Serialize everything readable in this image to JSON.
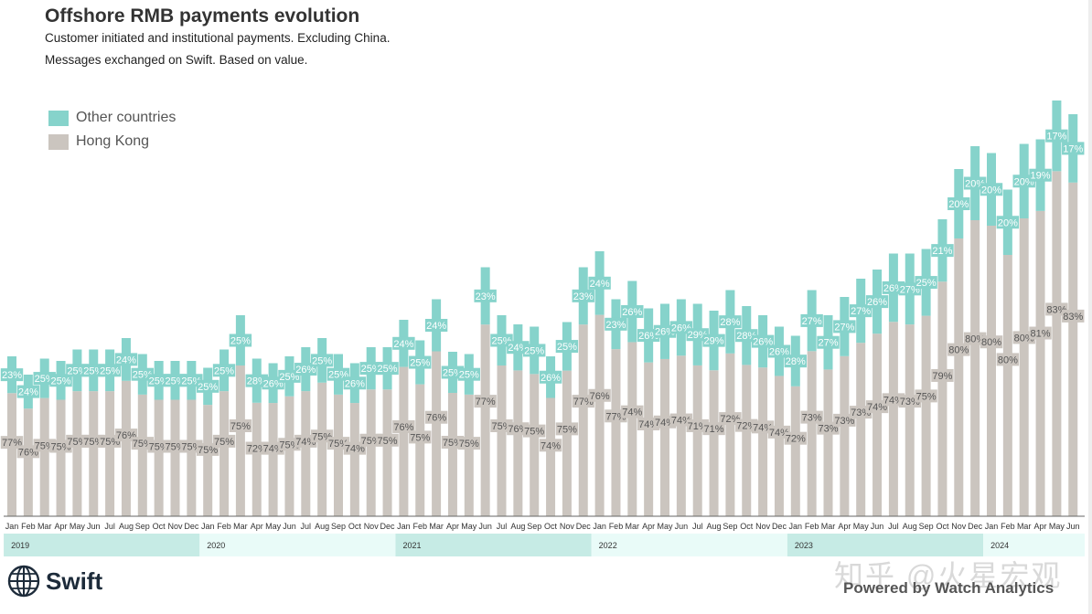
{
  "header": {
    "title": "Offshore RMB payments evolution",
    "subtitle_1": "Customer initiated and institutional payments. Excluding China.",
    "subtitle_2": "Messages exchanged on Swift. Based on value."
  },
  "legend": {
    "other": "Other countries",
    "hk": "Hong Kong"
  },
  "footer": {
    "brand": "Swift",
    "powered_by": "Powered by Watch Analytics",
    "watermark": "知乎 @火星宏观"
  },
  "colors": {
    "other": "#86d3cb",
    "hk": "#cbc5bf",
    "year_band_a": "#c6ebe5",
    "year_band_b": "#e9fbf8"
  },
  "chart_data": {
    "type": "bar",
    "stacked": true,
    "values_are_shares": true,
    "title": "Offshore RMB payments evolution",
    "xlabel": "",
    "ylabel": "",
    "grid": false,
    "legend_position": "top-left",
    "months": [
      "Jan",
      "Feb",
      "Mar",
      "Apr",
      "May",
      "Jun",
      "Jul",
      "Aug",
      "Sep",
      "Oct",
      "Nov",
      "Dec",
      "Jan",
      "Feb",
      "Mar",
      "Apr",
      "May",
      "Jun",
      "Jul",
      "Aug",
      "Sep",
      "Oct",
      "Nov",
      "Dec",
      "Jan",
      "Feb",
      "Mar",
      "Apr",
      "May",
      "Jun",
      "Jul",
      "Aug",
      "Sep",
      "Oct",
      "Nov",
      "Dec",
      "Jan",
      "Feb",
      "Mar",
      "Apr",
      "May",
      "Jun",
      "Jul",
      "Aug",
      "Sep",
      "Oct",
      "Nov",
      "Dec",
      "Jan",
      "Feb",
      "Mar",
      "Apr",
      "May",
      "Jun",
      "Jul",
      "Aug",
      "Sep",
      "Oct",
      "Nov",
      "Dec",
      "Jan",
      "Feb",
      "Mar",
      "Apr",
      "May",
      "Jun"
    ],
    "years": [
      {
        "label": "2019",
        "start": 0,
        "count": 12
      },
      {
        "label": "2020",
        "start": 12,
        "count": 12
      },
      {
        "label": "2021",
        "start": 24,
        "count": 12
      },
      {
        "label": "2022",
        "start": 36,
        "count": 12
      },
      {
        "label": "2023",
        "start": 48,
        "count": 12
      },
      {
        "label": "2024",
        "start": 60,
        "count": 6
      }
    ],
    "series": [
      {
        "name": "Hong Kong",
        "share_percent": [
          77,
          76,
          75,
          75,
          75,
          75,
          75,
          76,
          75,
          75,
          75,
          75,
          75,
          75,
          75,
          72,
          74,
          75,
          74,
          75,
          75,
          74,
          75,
          75,
          76,
          75,
          76,
          75,
          75,
          77,
          75,
          76,
          75,
          74,
          75,
          77,
          76,
          77,
          74,
          74,
          74,
          74,
          71,
          71,
          72,
          72,
          74,
          74,
          72,
          73,
          73,
          73,
          73,
          74,
          74,
          73,
          75,
          79,
          80,
          80,
          80,
          80,
          80,
          81,
          83,
          83
        ]
      },
      {
        "name": "Other countries",
        "share_percent": [
          23,
          24,
          25,
          25,
          25,
          25,
          25,
          24,
          25,
          25,
          25,
          25,
          25,
          25,
          25,
          28,
          26,
          25,
          26,
          25,
          25,
          26,
          25,
          25,
          24,
          25,
          24,
          25,
          25,
          23,
          25,
          24,
          25,
          26,
          25,
          23,
          24,
          23,
          26,
          26,
          26,
          26,
          29,
          29,
          28,
          28,
          26,
          26,
          28,
          27,
          27,
          27,
          27,
          26,
          26,
          27,
          25,
          21,
          20,
          20,
          20,
          20,
          20,
          19,
          17,
          17
        ]
      }
    ],
    "total_value_index": [
      70,
      62,
      69,
      68,
      73,
      73,
      73,
      78,
      71,
      68,
      68,
      68,
      65,
      73,
      88,
      69,
      67,
      70,
      74,
      78,
      71,
      67,
      74,
      74,
      86,
      77,
      95,
      72,
      71,
      109,
      88,
      84,
      83,
      70,
      85,
      109,
      116,
      95,
      103,
      91,
      93,
      95,
      93,
      90,
      99,
      92,
      88,
      83,
      79,
      99,
      88,
      96,
      104,
      108,
      115,
      115,
      117,
      130,
      152,
      162,
      159,
      143,
      163,
      165,
      182,
      176
    ]
  }
}
